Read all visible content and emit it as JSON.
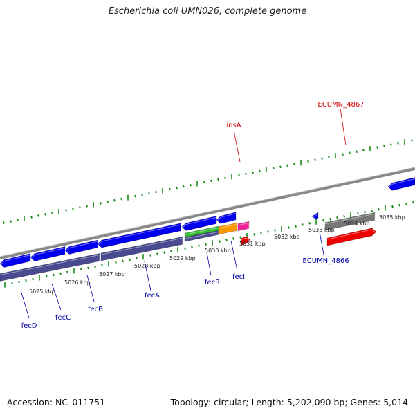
{
  "title": "Escherichia coli UMN026, complete genome",
  "footer": {
    "accession": "Accession: NC_011751",
    "summary": "Topology: circular; Length: 5,202,090 bp; Genes: 5,014"
  },
  "colors": {
    "cds_blue": "#0000ee",
    "gene_navy": "#4a4a90",
    "rna_red": "#ee0000",
    "pseudo_gray": "#777777",
    "green": "#33bb33",
    "orange": "#ff9900",
    "magenta": "#ee2299",
    "tick_green": "#1a8a1a",
    "label_blue": "#0000aa",
    "label_red": "#cc0000"
  },
  "scale": {
    "unit": "kbp",
    "ticks": [
      {
        "label": "5025 kbp"
      },
      {
        "label": "5026 kbp"
      },
      {
        "label": "5027 kbp"
      },
      {
        "label": "5028 kbp"
      },
      {
        "label": "5029 kbp"
      },
      {
        "label": "5030 kbp"
      },
      {
        "label": "5031 kbp"
      },
      {
        "label": "5032 kbp"
      },
      {
        "label": "5033 kbp"
      },
      {
        "label": "5034 kbp"
      },
      {
        "label": "5035 kbp"
      }
    ]
  },
  "gene_labels": [
    {
      "name": "fecD",
      "color": "label_blue"
    },
    {
      "name": "fecC",
      "color": "label_blue"
    },
    {
      "name": "fecB",
      "color": "label_blue"
    },
    {
      "name": "fecA",
      "color": "label_blue"
    },
    {
      "name": "fecR",
      "color": "label_blue"
    },
    {
      "name": "fecI",
      "color": "label_blue"
    },
    {
      "name": "ECUMN_4866",
      "color": "label_blue"
    },
    {
      "name": "insA",
      "color": "label_red"
    },
    {
      "name": "ECUMN_4867",
      "color": "label_red"
    }
  ]
}
